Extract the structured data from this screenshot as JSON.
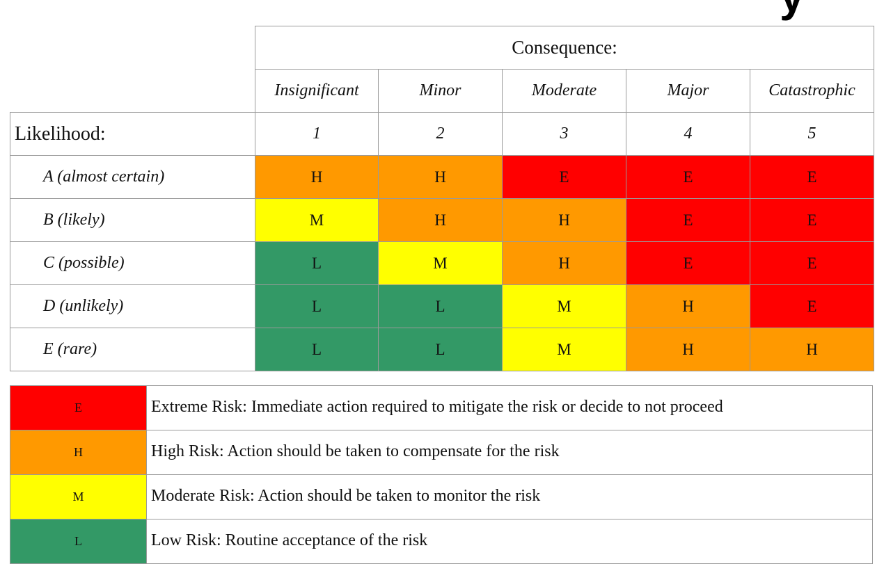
{
  "title_fragment": "y",
  "matrix": {
    "consequence_label": "Consequence:",
    "likelihood_label": "Likelihood:",
    "columns": [
      {
        "label": "Insignificant",
        "number": "1"
      },
      {
        "label": "Minor",
        "number": "2"
      },
      {
        "label": "Moderate",
        "number": "3"
      },
      {
        "label": "Major",
        "number": "4"
      },
      {
        "label": "Catastrophic",
        "number": "5"
      }
    ],
    "rows": [
      {
        "label": "A (almost certain)",
        "cells": [
          "H",
          "H",
          "E",
          "E",
          "E"
        ]
      },
      {
        "label": "B (likely)",
        "cells": [
          "M",
          "H",
          "H",
          "E",
          "E"
        ]
      },
      {
        "label": "C (possible)",
        "cells": [
          "L",
          "M",
          "H",
          "E",
          "E"
        ]
      },
      {
        "label": "D (unlikely)",
        "cells": [
          "L",
          "L",
          "M",
          "H",
          "E"
        ]
      },
      {
        "label": "E (rare)",
        "cells": [
          "L",
          "L",
          "M",
          "H",
          "H"
        ]
      }
    ]
  },
  "legend": [
    {
      "code": "E",
      "text": "Extreme Risk: Immediate action required to mitigate the risk or decide to not proceed"
    },
    {
      "code": "H",
      "text": "High Risk: Action should be taken to compensate for the risk"
    },
    {
      "code": "M",
      "text": "Moderate Risk: Action should be taken to monitor the risk"
    },
    {
      "code": "L",
      "text": "Low Risk: Routine acceptance of the risk"
    }
  ],
  "colors": {
    "E": "#ff0000",
    "H": "#ff9900",
    "M": "#ffff00",
    "L": "#339966"
  }
}
